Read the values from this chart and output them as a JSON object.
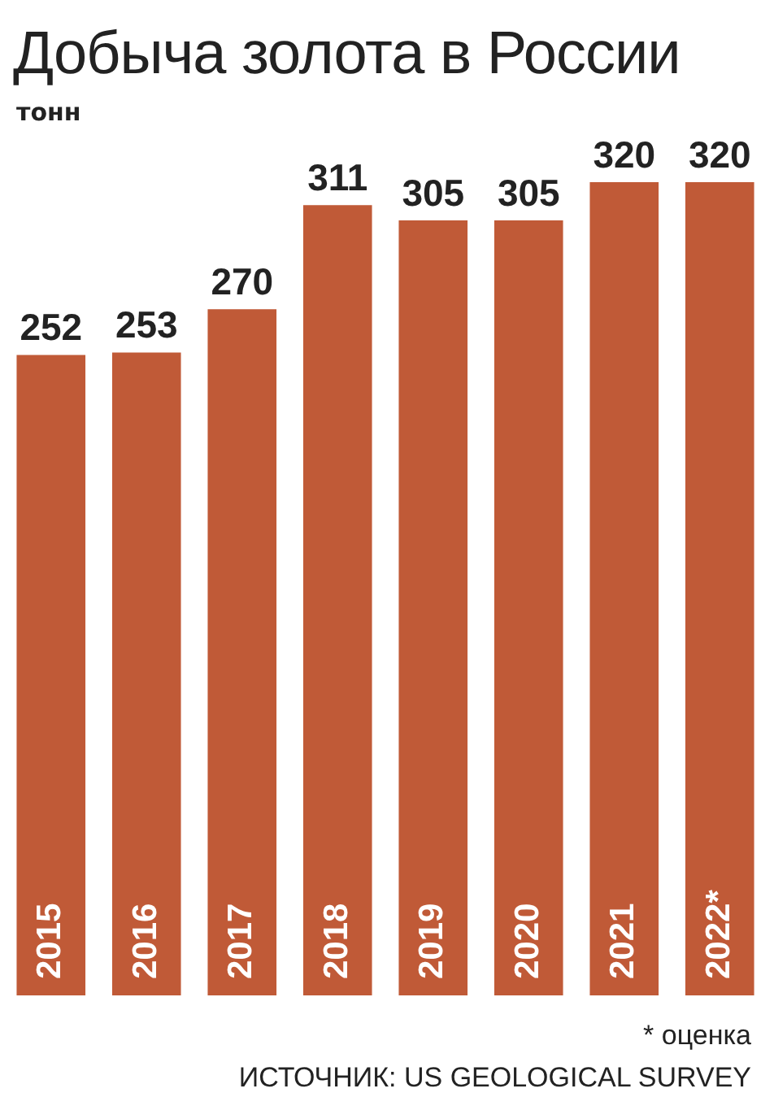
{
  "chart_data": {
    "type": "bar",
    "title": "Добыча золота в России",
    "subtitle": "тонн",
    "categories": [
      "2015",
      "2016",
      "2017",
      "2018",
      "2019",
      "2020",
      "2021",
      "2022*"
    ],
    "values": [
      252,
      253,
      270,
      311,
      305,
      305,
      320,
      320
    ],
    "color": "#c05a37",
    "data_labels": true,
    "tick_labels": "x",
    "annotations": [
      "* оценка",
      "ИСТОЧНИК: US GEOLOGICAL SURVEY"
    ]
  }
}
